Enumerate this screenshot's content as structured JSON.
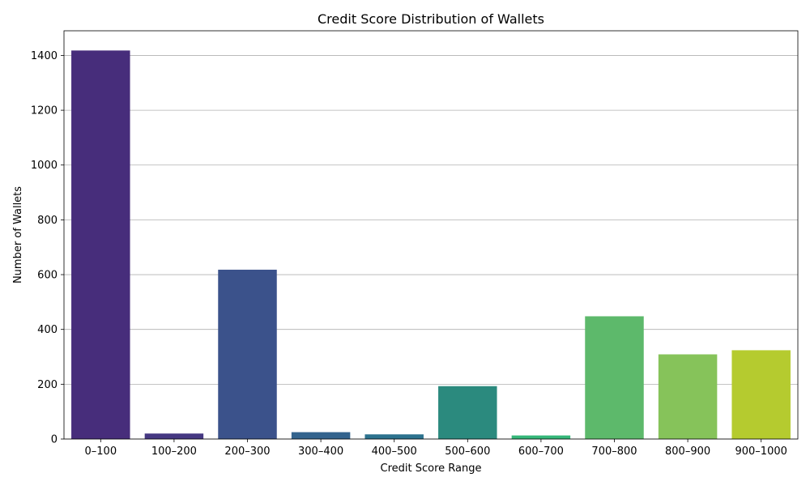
{
  "chart_data": {
    "type": "bar",
    "title": "Credit Score Distribution of Wallets",
    "xlabel": "Credit Score Range",
    "ylabel": "Number of Wallets",
    "categories": [
      "0–100",
      "100–200",
      "200–300",
      "300–400",
      "400–500",
      "500–600",
      "600–700",
      "700–800",
      "800–900",
      "900–1000"
    ],
    "values": [
      1418,
      20,
      618,
      25,
      17,
      193,
      13,
      448,
      309,
      324
    ],
    "colors": [
      "#472d7b",
      "#453882",
      "#3b528b",
      "#33638d",
      "#2c728e",
      "#2b8a7e",
      "#35b779",
      "#5db96b",
      "#86c35a",
      "#b5cb2f"
    ],
    "ylim": [
      0,
      1490
    ],
    "yticks": [
      0,
      200,
      400,
      600,
      800,
      1000,
      1200,
      1400
    ],
    "grid": "y-axis"
  }
}
